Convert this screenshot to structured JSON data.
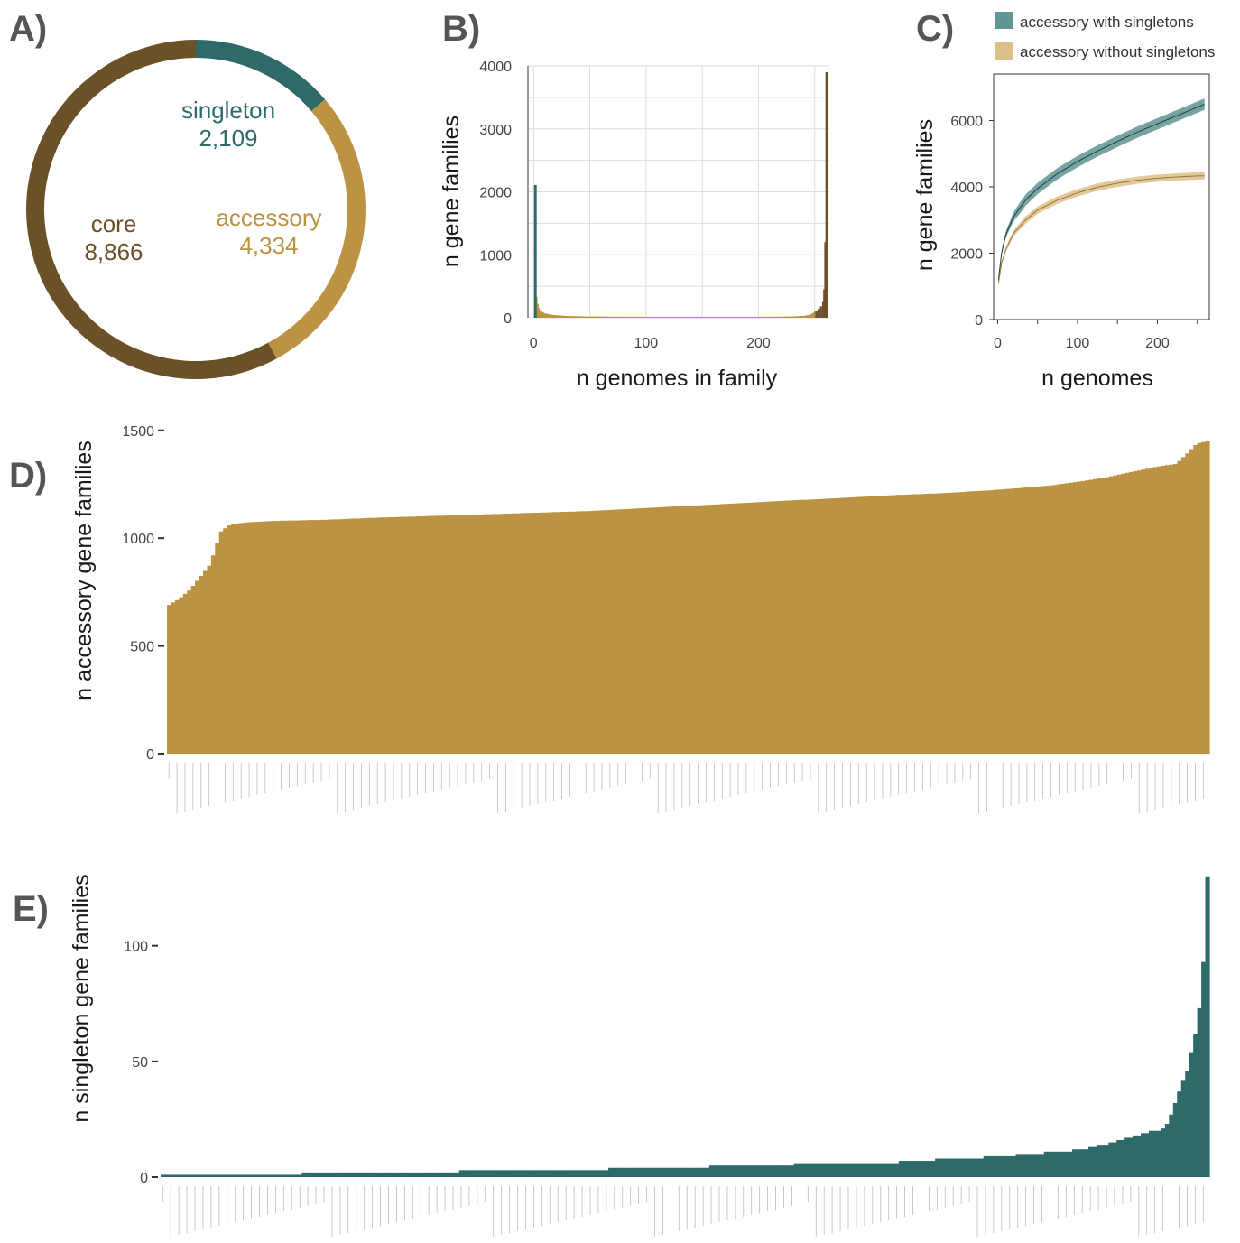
{
  "colors": {
    "core": "#6b5128",
    "accessory": "#bb9342",
    "singleton": "#2e6a6a",
    "band_with": "#5f9493",
    "band_without": "#dcc089"
  },
  "chart_data": [
    {
      "panel": "A)",
      "type": "pie",
      "categories": [
        "singleton",
        "accessory",
        "core"
      ],
      "values": [
        2109,
        4334,
        8866
      ],
      "value_labels": [
        "2,109",
        "4,334",
        "8,866"
      ]
    },
    {
      "panel": "B)",
      "type": "bar",
      "xlabel": "n genomes in family",
      "ylabel": "n  gene families",
      "xlim": [
        -5,
        263
      ],
      "ylim": [
        0,
        4000
      ],
      "xticks": [
        0,
        100,
        200
      ],
      "yticks": [
        0,
        1000,
        2000,
        3000,
        4000
      ],
      "grid": true,
      "series": [
        {
          "name": "singleton",
          "x": [
            1
          ],
          "values": [
            2109
          ]
        },
        {
          "name": "accessory",
          "x": [
            2,
            3,
            4,
            5,
            6,
            8,
            10,
            15,
            20,
            30,
            50,
            100,
            150,
            200,
            230,
            240,
            245,
            248,
            250
          ],
          "values": [
            650,
            330,
            220,
            160,
            120,
            90,
            70,
            50,
            40,
            28,
            20,
            15,
            15,
            15,
            20,
            30,
            45,
            70,
            100
          ]
        },
        {
          "name": "core",
          "x": [
            251,
            253,
            255,
            257,
            258,
            259,
            260
          ],
          "values": [
            100,
            140,
            180,
            250,
            450,
            1200,
            3900
          ]
        }
      ]
    },
    {
      "panel": "C)",
      "type": "line",
      "xlabel": "n genomes",
      "ylabel": "n  gene families",
      "xlim": [
        -5,
        265
      ],
      "ylim": [
        0,
        7400
      ],
      "xticks": [
        0,
        100,
        200
      ],
      "yticks": [
        0,
        2000,
        4000,
        6000
      ],
      "legend": "top-right",
      "series": [
        {
          "name": "accessory with singletons",
          "x": [
            1,
            5,
            10,
            20,
            35,
            50,
            75,
            100,
            125,
            150,
            175,
            200,
            225,
            250,
            260
          ],
          "values": [
            1200,
            2000,
            2550,
            3100,
            3600,
            3950,
            4400,
            4760,
            5080,
            5370,
            5650,
            5900,
            6150,
            6400,
            6500
          ],
          "band": 170
        },
        {
          "name": "accessory without singletons",
          "x": [
            1,
            5,
            10,
            20,
            35,
            50,
            75,
            100,
            125,
            150,
            175,
            200,
            225,
            250,
            260
          ],
          "values": [
            1100,
            1700,
            2100,
            2600,
            3000,
            3300,
            3600,
            3820,
            3990,
            4110,
            4200,
            4260,
            4300,
            4330,
            4334
          ],
          "band": 110
        }
      ]
    },
    {
      "panel": "D)",
      "type": "bar",
      "ylabel": "n accessory gene families",
      "ylim": [
        0,
        1520
      ],
      "yticks": [
        0,
        500,
        1000,
        1500
      ],
      "n_bars": 260,
      "profile_x": [
        0,
        0.005,
        0.01,
        0.02,
        0.03,
        0.04,
        0.045,
        0.05,
        0.055,
        0.06,
        0.07,
        0.08,
        0.1,
        0.15,
        0.2,
        0.3,
        0.4,
        0.5,
        0.6,
        0.7,
        0.75,
        0.8,
        0.85,
        0.88,
        0.9,
        0.92,
        0.95,
        0.97,
        0.98,
        0.99,
        1.0
      ],
      "profile_y": [
        690,
        705,
        720,
        760,
        820,
        880,
        960,
        1030,
        1050,
        1065,
        1070,
        1075,
        1080,
        1085,
        1095,
        1110,
        1125,
        1150,
        1175,
        1200,
        1210,
        1225,
        1245,
        1265,
        1280,
        1300,
        1330,
        1345,
        1390,
        1440,
        1450
      ]
    },
    {
      "panel": "E)",
      "type": "bar",
      "ylabel": "n singleton gene families",
      "ylim": [
        0,
        135
      ],
      "yticks": [
        0,
        50,
        100
      ],
      "n_bars": 260,
      "profile_x": [
        0,
        0.13,
        0.14,
        0.28,
        0.29,
        0.42,
        0.43,
        0.52,
        0.53,
        0.6,
        0.61,
        0.7,
        0.71,
        0.77,
        0.8,
        0.83,
        0.86,
        0.88,
        0.9,
        0.92,
        0.93,
        0.94,
        0.95,
        0.96,
        0.97,
        0.975,
        0.98,
        0.985,
        0.99,
        0.995,
        1.0
      ],
      "profile_y": [
        1,
        1,
        2,
        2,
        3,
        3,
        4,
        4,
        5,
        5,
        6,
        6,
        7,
        8,
        9,
        10,
        11,
        12,
        14,
        16,
        18,
        19,
        20,
        21,
        33,
        40,
        45,
        55,
        65,
        82,
        130
      ]
    }
  ]
}
